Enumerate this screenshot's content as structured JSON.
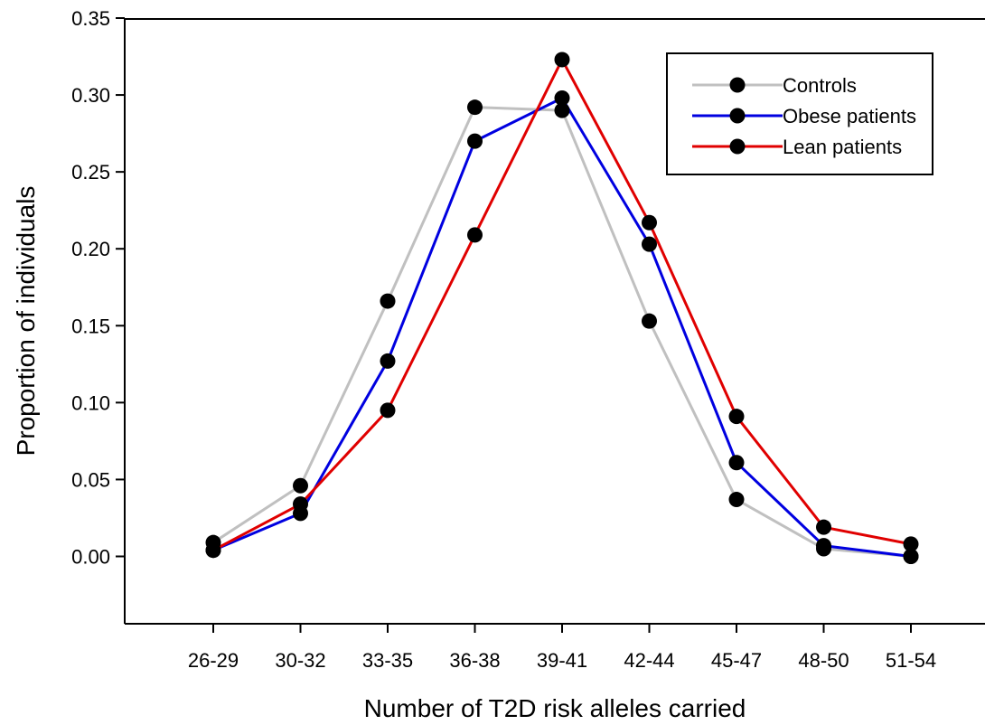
{
  "chart_data": {
    "type": "line",
    "title": "",
    "xlabel": "Number of T2D risk alleles carried",
    "ylabel": "Proportion of individuals",
    "categories": [
      "26-29",
      "30-32",
      "33-35",
      "36-38",
      "39-41",
      "42-44",
      "45-47",
      "48-50",
      "51-54"
    ],
    "ylim": [
      -0.04,
      0.35
    ],
    "yticks": [
      "0.00",
      "0.05",
      "0.10",
      "0.15",
      "0.20",
      "0.25",
      "0.30",
      "0.35"
    ],
    "grid": false,
    "legend_position": "top-right",
    "series": [
      {
        "name": "Controls",
        "color": "#c0c0c0",
        "values": [
          0.009,
          0.046,
          0.166,
          0.292,
          0.29,
          0.153,
          0.037,
          0.005,
          0.0
        ]
      },
      {
        "name": "Obese patients",
        "color": "#0000e0",
        "values": [
          0.004,
          0.028,
          0.127,
          0.27,
          0.298,
          0.203,
          0.061,
          0.007,
          0.0
        ]
      },
      {
        "name": "Lean patients",
        "color": "#e00000",
        "values": [
          0.004,
          0.034,
          0.095,
          0.209,
          0.323,
          0.217,
          0.091,
          0.019,
          0.008
        ]
      }
    ],
    "marker_color": "#000000"
  }
}
